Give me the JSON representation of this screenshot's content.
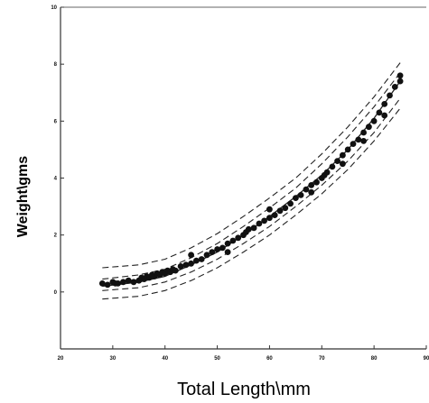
{
  "chart_data": {
    "type": "scatter",
    "title": "",
    "xlabel": "Total Length\\mm",
    "ylabel": "Weight\\gms",
    "xlim": [
      20,
      90
    ],
    "ylim": [
      -2,
      10
    ],
    "x_ticks": [
      20,
      30,
      40,
      50,
      60,
      70,
      80,
      90
    ],
    "y_ticks": [
      0,
      2,
      4,
      6,
      8,
      10
    ],
    "x_tick_labels": [
      "20",
      "30",
      "40",
      "50",
      "60",
      "70",
      "80",
      "90"
    ],
    "y_tick_labels": [
      "0",
      "2",
      "4",
      "6",
      "8",
      "10"
    ],
    "grid": false,
    "legend": "none",
    "colors": {
      "points": "#111111",
      "curves": "#222222",
      "axis": "#333333"
    },
    "fit_curve": {
      "style": "solid",
      "x": [
        28,
        35,
        40,
        45,
        50,
        55,
        60,
        65,
        70,
        75,
        80,
        85
      ],
      "y": [
        0.2,
        0.35,
        0.55,
        0.95,
        1.4,
        2.0,
        2.65,
        3.35,
        4.1,
        5.0,
        6.1,
        7.4
      ]
    },
    "confidence_band": {
      "style": "dashed",
      "upper": {
        "x": [
          28,
          35,
          40,
          45,
          50,
          55,
          60,
          65,
          70,
          75,
          80,
          85
        ],
        "y": [
          0.45,
          0.6,
          0.8,
          1.2,
          1.7,
          2.3,
          2.95,
          3.65,
          4.5,
          5.45,
          6.5,
          7.7
        ]
      },
      "lower": {
        "x": [
          28,
          35,
          40,
          45,
          50,
          55,
          60,
          65,
          70,
          75,
          80,
          85
        ],
        "y": [
          0.05,
          0.15,
          0.35,
          0.7,
          1.15,
          1.7,
          2.3,
          3.0,
          3.75,
          4.6,
          5.6,
          6.8
        ]
      }
    },
    "prediction_band": {
      "style": "dashed",
      "upper": {
        "x": [
          28,
          35,
          40,
          45,
          50,
          55,
          60,
          65,
          70,
          75,
          80,
          85
        ],
        "y": [
          0.85,
          0.95,
          1.15,
          1.55,
          2.05,
          2.65,
          3.3,
          4.0,
          4.85,
          5.8,
          6.85,
          8.05
        ]
      },
      "lower": {
        "x": [
          28,
          35,
          40,
          45,
          50,
          55,
          60,
          65,
          70,
          75,
          80,
          85
        ],
        "y": [
          -0.25,
          -0.15,
          0.05,
          0.4,
          0.85,
          1.4,
          2.0,
          2.7,
          3.45,
          4.3,
          5.3,
          6.45
        ]
      }
    },
    "points": [
      [
        28,
        0.3
      ],
      [
        29,
        0.25
      ],
      [
        30,
        0.35
      ],
      [
        30.5,
        0.3
      ],
      [
        31,
        0.3
      ],
      [
        32,
        0.35
      ],
      [
        33,
        0.4
      ],
      [
        34,
        0.35
      ],
      [
        35,
        0.4
      ],
      [
        35.5,
        0.5
      ],
      [
        36,
        0.45
      ],
      [
        36.5,
        0.55
      ],
      [
        37,
        0.5
      ],
      [
        37.5,
        0.6
      ],
      [
        38,
        0.55
      ],
      [
        38.5,
        0.65
      ],
      [
        39,
        0.6
      ],
      [
        39.5,
        0.7
      ],
      [
        40,
        0.65
      ],
      [
        40.5,
        0.75
      ],
      [
        41,
        0.7
      ],
      [
        41.5,
        0.8
      ],
      [
        42,
        0.75
      ],
      [
        43,
        0.9
      ],
      [
        44,
        0.95
      ],
      [
        45,
        1.0
      ],
      [
        46,
        1.1
      ],
      [
        47,
        1.15
      ],
      [
        48,
        1.3
      ],
      [
        49,
        1.4
      ],
      [
        50,
        1.5
      ],
      [
        51,
        1.55
      ],
      [
        52,
        1.7
      ],
      [
        53,
        1.8
      ],
      [
        54,
        1.9
      ],
      [
        55,
        2.0
      ],
      [
        55.5,
        2.1
      ],
      [
        56,
        2.2
      ],
      [
        57,
        2.25
      ],
      [
        58,
        2.4
      ],
      [
        59,
        2.5
      ],
      [
        60,
        2.6
      ],
      [
        61,
        2.7
      ],
      [
        62,
        2.85
      ],
      [
        63,
        2.95
      ],
      [
        64,
        3.1
      ],
      [
        65,
        3.3
      ],
      [
        66,
        3.4
      ],
      [
        67,
        3.6
      ],
      [
        68,
        3.75
      ],
      [
        69,
        3.85
      ],
      [
        70,
        4.0
      ],
      [
        70.5,
        4.1
      ],
      [
        71,
        4.2
      ],
      [
        72,
        4.4
      ],
      [
        73,
        4.6
      ],
      [
        74,
        4.8
      ],
      [
        75,
        5.0
      ],
      [
        76,
        5.2
      ],
      [
        77,
        5.35
      ],
      [
        78,
        5.6
      ],
      [
        79,
        5.8
      ],
      [
        80,
        6.0
      ],
      [
        81,
        6.3
      ],
      [
        82,
        6.6
      ],
      [
        83,
        6.9
      ],
      [
        84,
        7.2
      ],
      [
        85,
        7.4
      ],
      [
        45,
        1.3
      ],
      [
        52,
        1.4
      ],
      [
        60,
        2.9
      ],
      [
        68,
        3.5
      ],
      [
        74,
        4.5
      ],
      [
        78,
        5.3
      ],
      [
        82,
        6.2
      ],
      [
        85,
        7.6
      ]
    ]
  }
}
